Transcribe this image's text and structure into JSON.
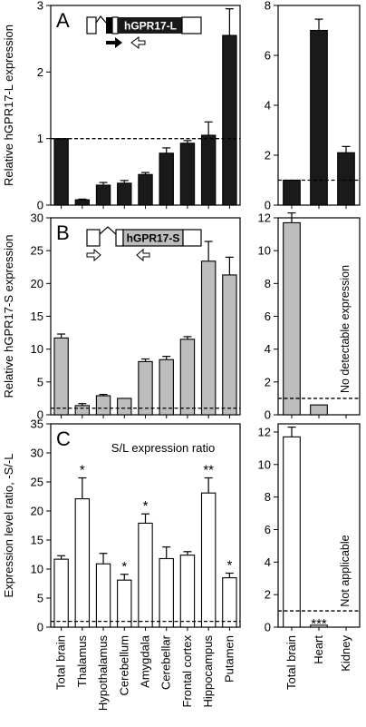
{
  "colors": {
    "black": "#1a1a1a",
    "gray": "#bdbdbd",
    "white": "#ffffff"
  },
  "categories_left": [
    "Total brain",
    "Thalamus",
    "Hypothalamus",
    "Cerebellum",
    "Amygdala",
    "Cerebellar",
    "Frontal cortex",
    "Hippocampus",
    "Putamen"
  ],
  "categories_right": [
    "Total brain",
    "Heart",
    "Kidney"
  ],
  "chart_data": [
    {
      "panel": "A",
      "type": "bar",
      "fill": "black",
      "construct_label": "hGPR17-L",
      "ylabel": "Relative hGPR17-L expression",
      "ylim": [
        0,
        3
      ],
      "yticks": [
        0,
        1,
        2,
        3
      ],
      "ref_line": 1,
      "values": [
        1.0,
        0.08,
        0.3,
        0.33,
        0.46,
        0.78,
        0.93,
        1.05,
        2.55
      ],
      "errors": [
        0,
        0.01,
        0.04,
        0.04,
        0.03,
        0.08,
        0.04,
        0.2,
        0.4
      ],
      "right": {
        "ylim": [
          0,
          8
        ],
        "yticks": [
          0,
          2,
          4,
          6,
          8
        ],
        "values": [
          1.0,
          7.0,
          2.1
        ],
        "errors": [
          0,
          0.45,
          0.25
        ]
      }
    },
    {
      "panel": "B",
      "type": "bar",
      "fill": "gray",
      "construct_label": "hGPR17-S",
      "ylabel": "Relative hGPR17-S expression",
      "ylim": [
        0,
        30
      ],
      "yticks": [
        0,
        5,
        10,
        15,
        20,
        25,
        30
      ],
      "ref_line": 1,
      "values": [
        11.7,
        1.4,
        2.9,
        2.5,
        8.1,
        8.4,
        11.5,
        23.4,
        21.3
      ],
      "errors": [
        0.6,
        0.3,
        0.2,
        0,
        0.4,
        0.5,
        0.4,
        3.0,
        2.7
      ],
      "right": {
        "ylim": [
          0,
          12
        ],
        "yticks": [
          0,
          2,
          4,
          6,
          8,
          10,
          12
        ],
        "values": [
          11.7,
          0.6,
          null
        ],
        "errors": [
          0.6,
          0,
          0
        ],
        "note": "No detectable expression"
      }
    },
    {
      "panel": "C",
      "type": "bar",
      "fill": "white",
      "subtitle": "S/L expression ratio",
      "ylabel": "Expression level ratio, -S/-L",
      "ylim": [
        0,
        35
      ],
      "yticks": [
        0,
        5,
        10,
        15,
        20,
        25,
        30,
        35
      ],
      "ref_line": 1,
      "values": [
        11.7,
        22.1,
        10.9,
        8.1,
        17.9,
        11.8,
        12.4,
        23.1,
        8.5
      ],
      "errors": [
        0.6,
        3.6,
        1.8,
        1.0,
        1.6,
        2.0,
        0.6,
        2.6,
        0.8
      ],
      "stars": [
        "",
        "*",
        "",
        "*",
        "*",
        "",
        "",
        "**",
        "*"
      ],
      "right": {
        "ylim": [
          0,
          12.5
        ],
        "yticks": [
          0,
          2,
          4,
          6,
          8,
          10,
          12
        ],
        "values": [
          11.7,
          0.12,
          null
        ],
        "errors": [
          0.6,
          0,
          0
        ],
        "stars": [
          "",
          "***",
          ""
        ],
        "note": "Not applicable"
      }
    }
  ]
}
